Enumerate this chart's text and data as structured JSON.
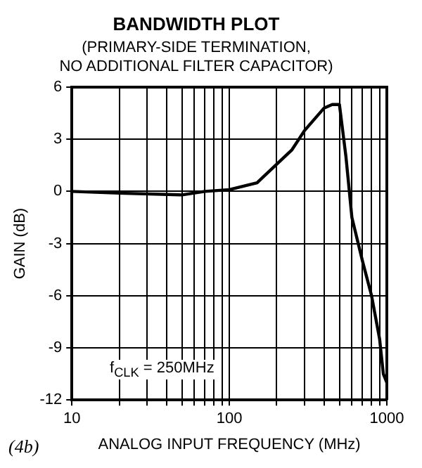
{
  "chart_data": {
    "type": "line",
    "title": "BANDWIDTH PLOT",
    "subtitle": "(PRIMARY-SIDE TERMINATION,\nNO ADDITIONAL FILTER CAPACITOR)",
    "xlabel": "ANALOG INPUT FREQUENCY (MHz)",
    "ylabel": "GAIN (dB)",
    "log": "x",
    "series": [
      {
        "color": "#000000",
        "x": [
          10,
          20,
          50,
          70,
          100,
          150,
          250,
          300,
          400,
          450,
          500,
          550,
          600,
          700,
          800,
          900,
          950,
          1000
        ],
        "values": [
          0,
          -0.1,
          -0.2,
          0,
          0.1,
          0.5,
          2.4,
          3.5,
          4.8,
          5,
          5,
          2,
          -1.5,
          -4,
          -6,
          -8.5,
          -10.5,
          -11
        ]
      }
    ],
    "xlim": [
      10,
      1000
    ],
    "ylim": [
      -12,
      6
    ],
    "xticks": [
      10,
      {
        "value": 20,
        "label": null
      },
      {
        "value": 30,
        "label": null
      },
      {
        "value": 40,
        "label": null
      },
      {
        "value": 50,
        "label": null
      },
      {
        "value": 60,
        "label": null
      },
      {
        "value": 70,
        "label": null
      },
      {
        "value": 80,
        "label": null
      },
      {
        "value": 90,
        "label": null
      },
      100,
      {
        "value": 200,
        "label": null
      },
      {
        "value": 300,
        "label": null
      },
      {
        "value": 400,
        "label": null
      },
      {
        "value": 500,
        "label": null
      },
      {
        "value": 600,
        "label": null
      },
      {
        "value": 700,
        "label": null
      },
      {
        "value": 800,
        "label": null
      },
      {
        "value": 900,
        "label": null
      },
      1000
    ],
    "yticks": [
      -12,
      -9,
      -6,
      -3,
      0,
      3,
      6
    ],
    "grid": true,
    "legend": false,
    "marker": "none",
    "line_style": "solid",
    "annotations": [
      "f$_{CLK}$ = 250MHz",
      "(4b)"
    ]
  }
}
